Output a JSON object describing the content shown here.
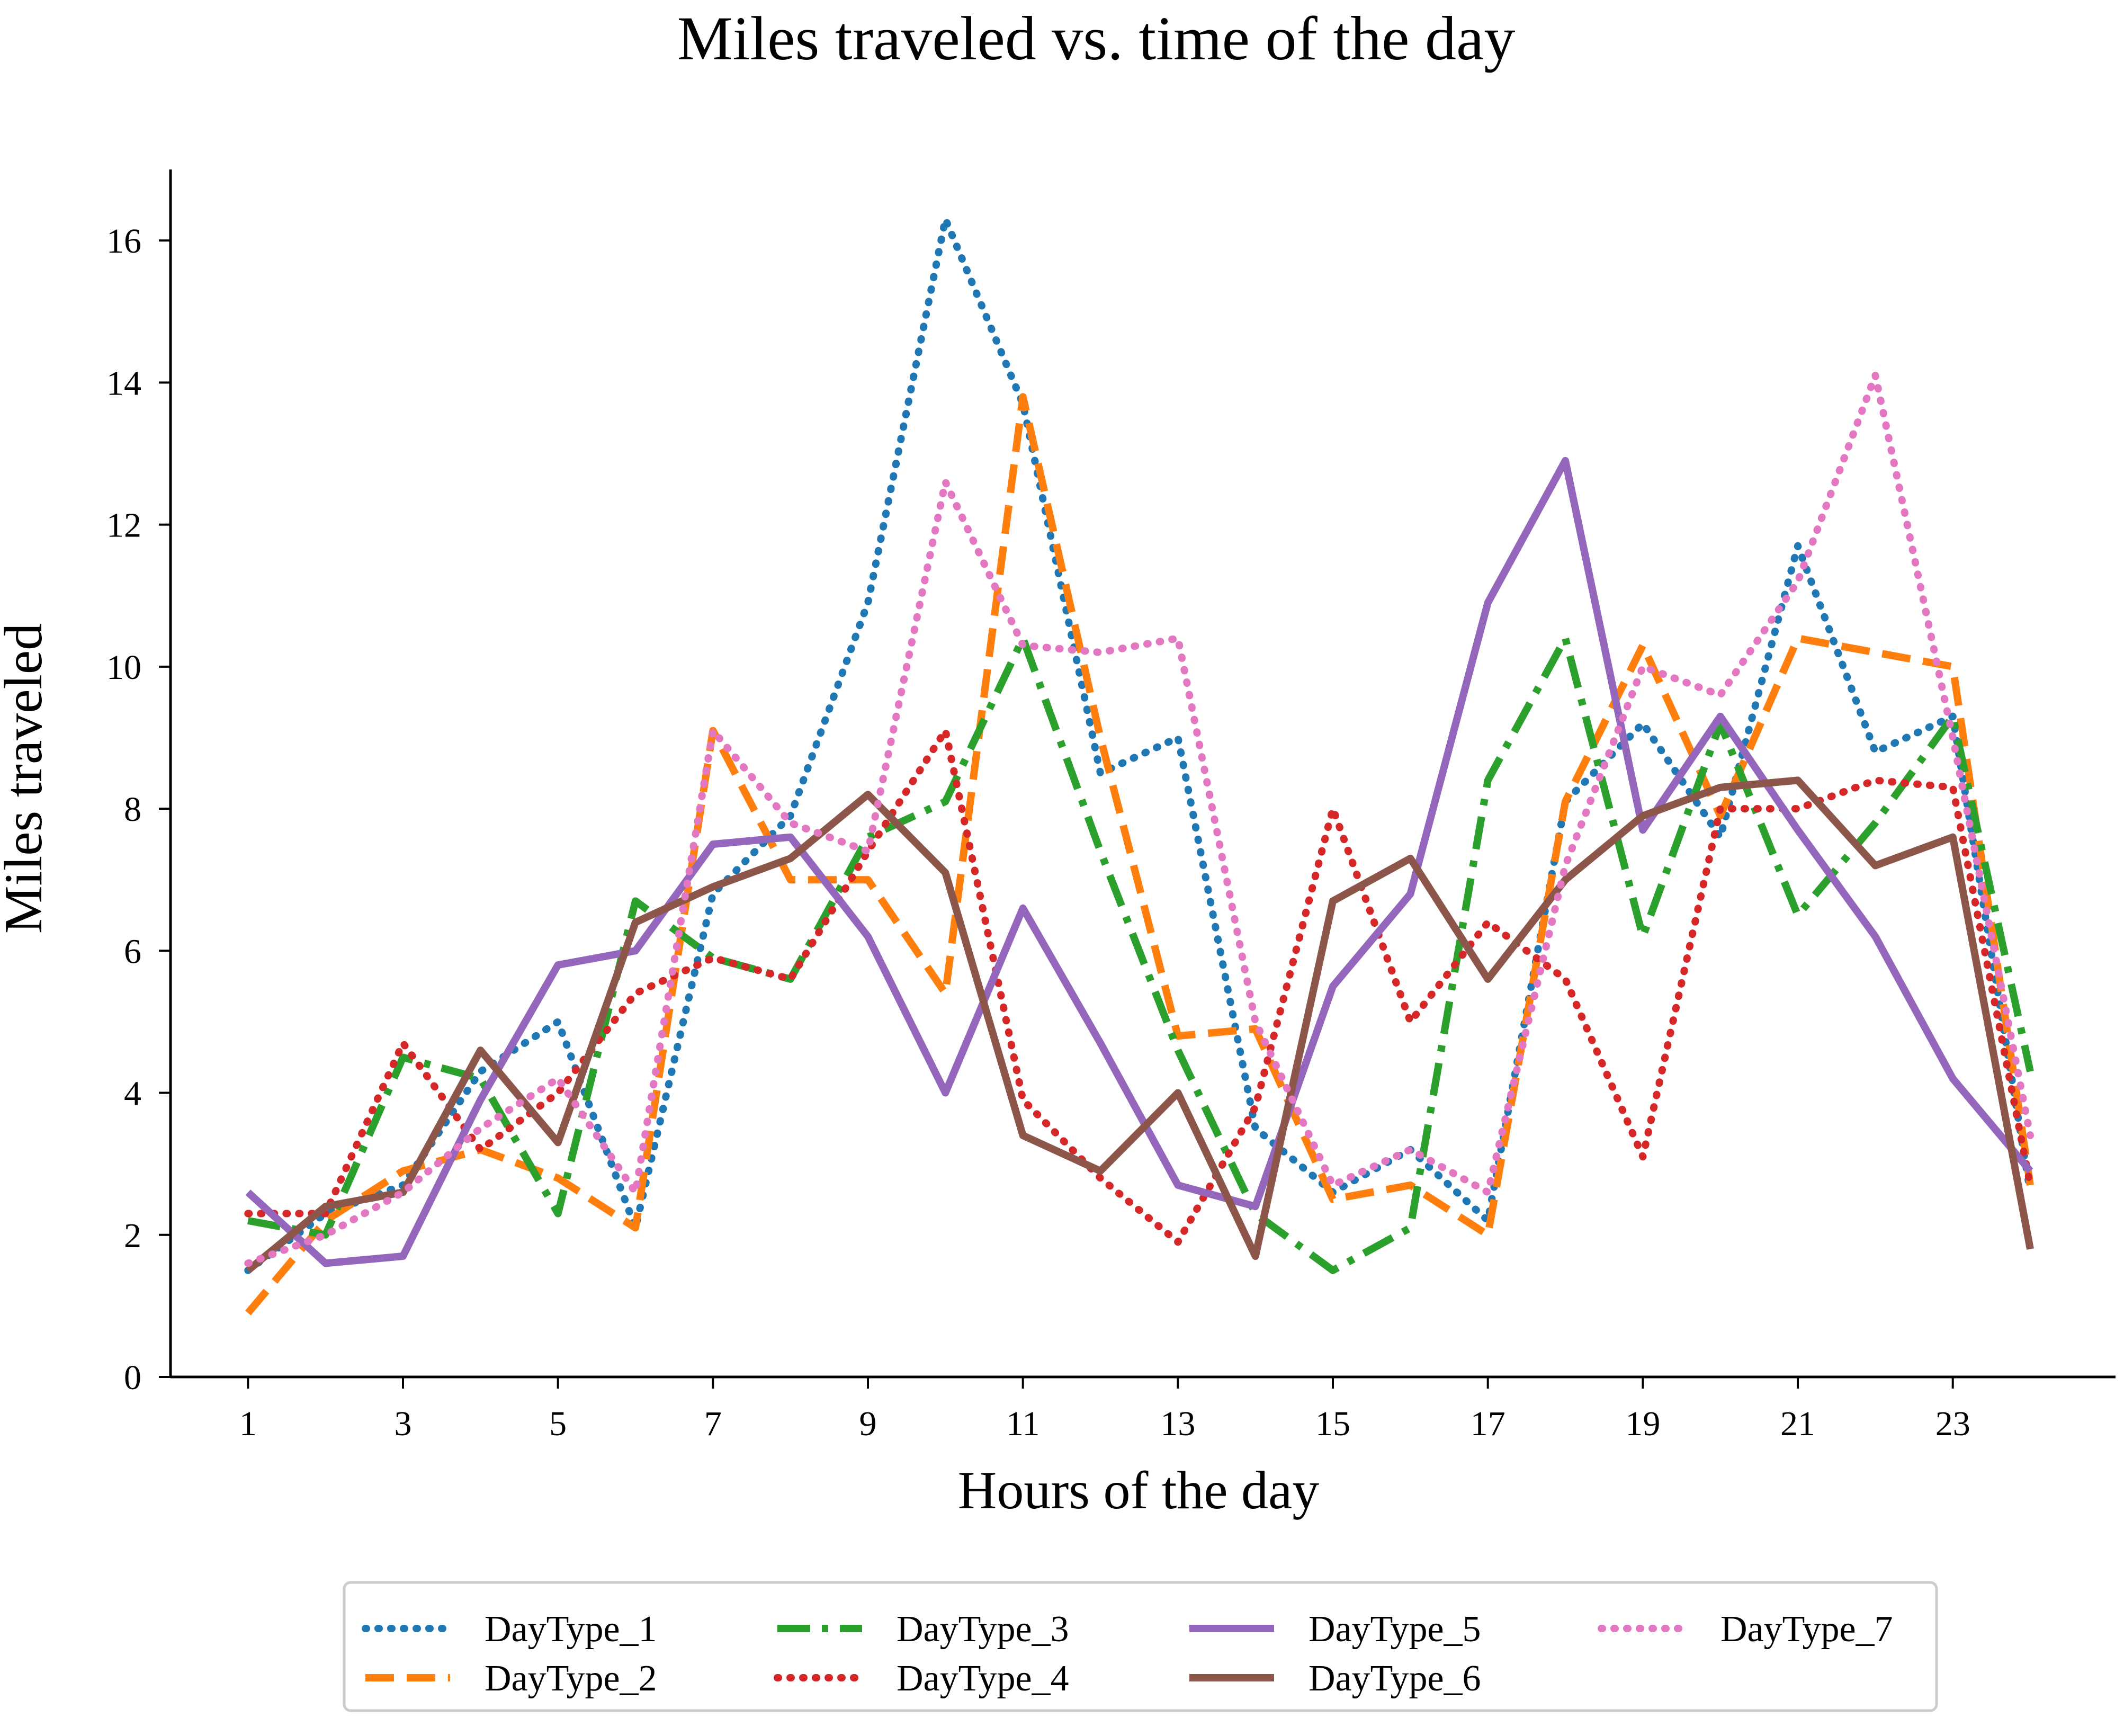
{
  "chart_data": {
    "type": "line",
    "title": "Miles traveled vs. time of the day",
    "xlabel": "Hours of the day",
    "ylabel": "Miles traveled",
    "x": [
      1,
      2,
      3,
      4,
      5,
      6,
      7,
      8,
      9,
      10,
      11,
      12,
      13,
      14,
      15,
      16,
      17,
      18,
      19,
      20,
      21,
      22,
      23,
      24
    ],
    "xticks": [
      1,
      3,
      5,
      7,
      9,
      11,
      13,
      15,
      17,
      19,
      21,
      23
    ],
    "yticks": [
      0,
      2,
      4,
      6,
      8,
      10,
      12,
      14,
      16
    ],
    "xlim": [
      0,
      25.1
    ],
    "ylim": [
      0,
      17
    ],
    "grid": false,
    "legend_position": "bottom",
    "series": [
      {
        "name": "DayType_1",
        "color": "#1f77b4",
        "style": "dotted",
        "values": [
          1.5,
          2.3,
          2.7,
          4.3,
          5.0,
          2.1,
          6.8,
          7.9,
          10.9,
          16.3,
          13.7,
          8.5,
          9.0,
          3.5,
          2.6,
          3.2,
          2.2,
          8.1,
          9.2,
          7.6,
          11.7,
          8.8,
          9.3,
          2.6
        ]
      },
      {
        "name": "DayType_2",
        "color": "#ff7f0e",
        "style": "dashed",
        "values": [
          0.9,
          2.2,
          2.9,
          3.2,
          2.8,
          2.1,
          9.1,
          7.0,
          7.0,
          5.4,
          13.8,
          9.0,
          4.8,
          4.9,
          2.5,
          2.7,
          2.0,
          8.1,
          10.3,
          7.9,
          10.4,
          10.2,
          10.0,
          2.7
        ]
      },
      {
        "name": "DayType_3",
        "color": "#2ca02c",
        "style": "dashdot",
        "values": [
          2.2,
          2.0,
          4.5,
          4.2,
          2.3,
          6.7,
          5.9,
          5.6,
          7.6,
          8.1,
          10.4,
          7.4,
          4.6,
          2.3,
          1.5,
          2.1,
          8.4,
          10.4,
          6.2,
          9.2,
          6.5,
          7.8,
          9.3,
          4.3
        ]
      },
      {
        "name": "DayType_4",
        "color": "#d62728",
        "style": "dotted",
        "values": [
          2.3,
          2.3,
          4.7,
          3.2,
          4.0,
          5.4,
          5.9,
          5.6,
          7.4,
          9.1,
          3.9,
          2.8,
          1.9,
          3.8,
          8.0,
          5.0,
          6.4,
          5.6,
          3.1,
          8.0,
          8.0,
          8.4,
          8.3,
          2.7
        ]
      },
      {
        "name": "DayType_5",
        "color": "#9467bd",
        "style": "solid",
        "values": [
          2.6,
          1.6,
          1.7,
          3.9,
          5.8,
          6.0,
          7.5,
          7.6,
          6.2,
          4.0,
          6.6,
          4.7,
          2.7,
          2.4,
          5.5,
          6.8,
          10.9,
          12.9,
          7.7,
          9.3,
          7.7,
          6.2,
          4.2,
          2.9
        ]
      },
      {
        "name": "DayType_6",
        "color": "#8c564b",
        "style": "solid",
        "values": [
          1.5,
          2.4,
          2.6,
          4.6,
          3.3,
          6.4,
          6.9,
          7.3,
          8.2,
          7.1,
          3.4,
          2.9,
          4.0,
          1.7,
          6.7,
          7.3,
          5.6,
          7.0,
          7.9,
          8.3,
          8.4,
          7.2,
          7.6,
          1.8
        ]
      },
      {
        "name": "DayType_7",
        "color": "#e377c2",
        "style": "dotted",
        "values": [
          1.6,
          2.0,
          2.6,
          3.5,
          4.2,
          2.6,
          9.1,
          7.8,
          7.4,
          12.6,
          10.3,
          10.2,
          10.4,
          5.0,
          2.7,
          3.2,
          2.6,
          7.2,
          10.0,
          9.6,
          11.2,
          14.1,
          9.0,
          3.4
        ]
      }
    ]
  }
}
